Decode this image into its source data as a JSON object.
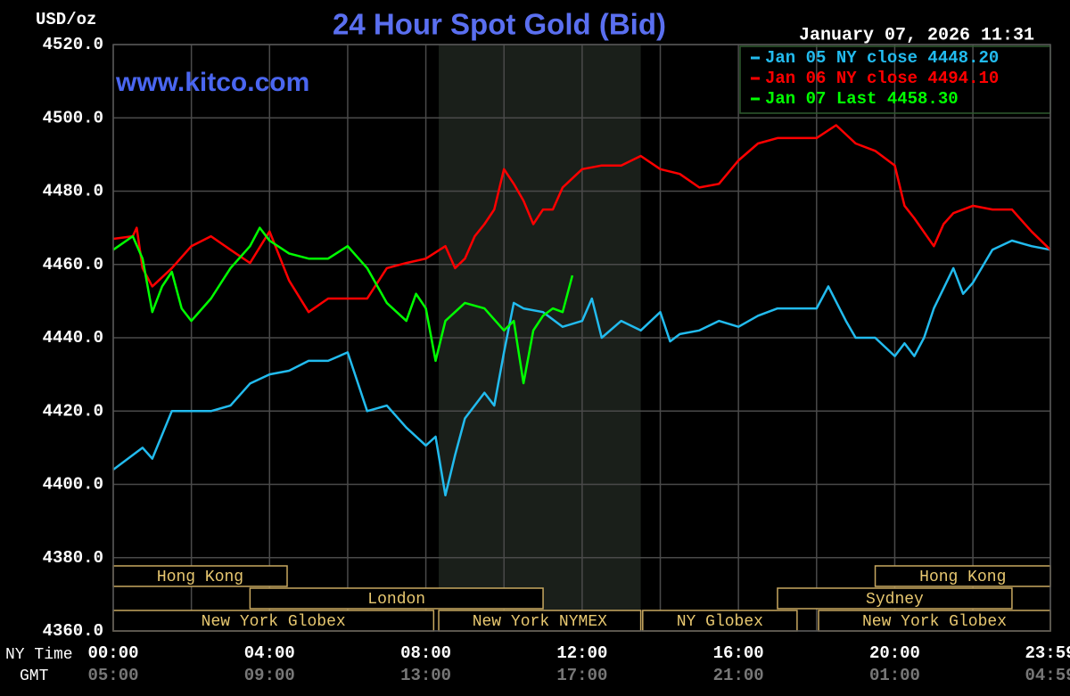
{
  "chart_data": {
    "type": "line",
    "title": "24 Hour Spot Gold (Bid)",
    "subtitle": "www.kitco.com",
    "timestamp": "January 07, 2026 11:31",
    "y_label": "USD/oz",
    "x_row_labels": [
      "NY Time",
      "GMT"
    ],
    "xlim": [
      0,
      23.983
    ],
    "ylim": [
      4360,
      4520
    ],
    "yticks": [
      {
        "value": 4360,
        "label": "4360.0"
      },
      {
        "value": 4380,
        "label": "4380.0"
      },
      {
        "value": 4400,
        "label": "4400.0"
      },
      {
        "value": 4420,
        "label": "4420.0"
      },
      {
        "value": 4440,
        "label": "4440.0"
      },
      {
        "value": 4460,
        "label": "4460.0"
      },
      {
        "value": 4480,
        "label": "4480.0"
      },
      {
        "value": 4500,
        "label": "4500.0"
      },
      {
        "value": 4520,
        "label": "4520.0"
      }
    ],
    "xticks": [
      {
        "value": 0,
        "label": "00:00"
      },
      {
        "value": 4,
        "label": "04:00"
      },
      {
        "value": 8,
        "label": "08:00"
      },
      {
        "value": 12,
        "label": "12:00"
      },
      {
        "value": 16,
        "label": "16:00"
      },
      {
        "value": 20,
        "label": "20:00"
      },
      {
        "value": 23.983,
        "label": "23:59"
      }
    ],
    "gmt_ticks": [
      {
        "value": 0,
        "label": "05:00"
      },
      {
        "value": 4,
        "label": "09:00"
      },
      {
        "value": 8,
        "label": "13:00"
      },
      {
        "value": 12,
        "label": "17:00"
      },
      {
        "value": 16,
        "label": "21:00"
      },
      {
        "value": 20,
        "label": "01:00"
      },
      {
        "value": 23.983,
        "label": "04:59"
      }
    ],
    "xminor": [
      2,
      6,
      10,
      14,
      18,
      22
    ],
    "grid": true,
    "highlight": [
      8.33,
      13.5
    ],
    "sessions": [
      [
        {
          "label": "Hong Kong",
          "start": 0,
          "end": 4.45
        },
        {
          "label": "Hong Kong",
          "start": 19.5,
          "end": 23.983
        }
      ],
      [
        {
          "label": "London",
          "start": 3.5,
          "end": 11.0
        },
        {
          "label": "Sydney",
          "start": 17.0,
          "end": 23.0
        }
      ],
      [
        {
          "label": "New York Globex",
          "start": 0,
          "end": 8.2
        },
        {
          "label": "New York NYMEX",
          "start": 8.33,
          "end": 13.5
        },
        {
          "label": "NY Globex",
          "start": 13.55,
          "end": 17.5
        },
        {
          "label": "New York Globex",
          "start": 18.05,
          "end": 23.983
        }
      ]
    ],
    "series": [
      {
        "name": "Jan 05 NY close 4448.20",
        "color": "#22bbee",
        "x": [
          0,
          0.5,
          0.75,
          1.0,
          1.5,
          2.0,
          2.5,
          3.0,
          3.5,
          4.0,
          4.5,
          5.0,
          5.5,
          6.0,
          6.5,
          7.0,
          7.5,
          8.0,
          8.25,
          8.5,
          8.75,
          9.0,
          9.5,
          9.75,
          10.0,
          10.25,
          10.5,
          11.0,
          11.5,
          12.0,
          12.25,
          12.5,
          13.0,
          13.5,
          14.0,
          14.25,
          14.5,
          15.0,
          15.5,
          16.0,
          16.5,
          17.0,
          18.0,
          18.3,
          18.75,
          19.0,
          19.5,
          20.0,
          20.25,
          20.5,
          20.75,
          21.0,
          21.5,
          21.75,
          22.0,
          22.5,
          23.0,
          23.5,
          23.983
        ],
        "values": [
          4404,
          4408,
          4410,
          4407,
          4420,
          4420,
          4420,
          4421.5,
          4427.5,
          4430,
          4431,
          4433.7,
          4433.7,
          4436,
          4420,
          4421.5,
          4415.5,
          4410.6,
          4413,
          4397,
          4408,
          4418,
          4425,
          4421.5,
          4436,
          4449.5,
          4448,
          4447,
          4443,
          4444.6,
          4450.7,
          4440,
          4444.6,
          4442,
          4447,
          4439,
          4441,
          4442,
          4444.6,
          4443,
          4446,
          4448,
          4448,
          4454,
          4444.6,
          4440,
          4440,
          4435,
          4438.5,
          4435,
          4440,
          4448,
          4459,
          4452,
          4455,
          4464,
          4466.5,
          4465,
          4464
        ]
      },
      {
        "name": "Jan 06 NY close 4494.10",
        "color": "#ff0000",
        "x": [
          0,
          0.5,
          0.6,
          0.75,
          1.0,
          1.5,
          2.0,
          2.5,
          3.0,
          3.5,
          4.0,
          4.5,
          5.0,
          5.5,
          6.0,
          6.5,
          7.0,
          7.5,
          8.0,
          8.5,
          8.75,
          9.0,
          9.25,
          9.5,
          9.75,
          10.0,
          10.25,
          10.5,
          10.75,
          11.0,
          11.25,
          11.5,
          12.0,
          12.5,
          13.0,
          13.5,
          14.0,
          14.5,
          15.0,
          15.5,
          16.0,
          16.5,
          17.0,
          17.5,
          18.0,
          18.5,
          19.0,
          19.5,
          20.0,
          20.25,
          20.5,
          21.0,
          21.25,
          21.5,
          22.0,
          22.5,
          23.0,
          23.5,
          23.983
        ],
        "values": [
          4467,
          4467.7,
          4470,
          4459,
          4454,
          4459,
          4465,
          4467.7,
          4464,
          4460.4,
          4469,
          4455.6,
          4447,
          4450.7,
          4450.7,
          4450.7,
          4459,
          4460.4,
          4461.6,
          4465,
          4459,
          4461.6,
          4467.7,
          4471,
          4475,
          4486,
          4482,
          4477.4,
          4471,
          4475,
          4475,
          4481,
          4486,
          4487,
          4487,
          4489.6,
          4486,
          4484.7,
          4481,
          4482,
          4488.4,
          4493,
          4494.5,
          4494.5,
          4494.5,
          4498,
          4493,
          4491,
          4487,
          4476,
          4472.6,
          4465,
          4471,
          4474,
          4476,
          4475,
          4475,
          4469,
          4464
        ]
      },
      {
        "name": "Jan 07 Last 4458.30",
        "color": "#00ff00",
        "x": [
          0,
          0.5,
          0.75,
          1.0,
          1.25,
          1.5,
          1.75,
          2.0,
          2.5,
          3.0,
          3.5,
          3.75,
          4.0,
          4.5,
          5.0,
          5.5,
          6.0,
          6.5,
          7.0,
          7.5,
          7.75,
          8.0,
          8.25,
          8.5,
          9.0,
          9.5,
          10.0,
          10.25,
          10.5,
          10.75,
          11.0,
          11.25,
          11.5,
          11.75
        ],
        "values": [
          4464,
          4467.7,
          4461.6,
          4447,
          4454,
          4458,
          4448,
          4444.6,
          4450.7,
          4459,
          4465,
          4470,
          4466.5,
          4463,
          4461.6,
          4461.6,
          4465,
          4459,
          4449.5,
          4444.6,
          4452,
          4448,
          4433.7,
          4444.6,
          4449.5,
          4448,
          4442,
          4444.6,
          4427.6,
          4442,
          4446,
          4448,
          4447,
          4457
        ]
      }
    ]
  }
}
